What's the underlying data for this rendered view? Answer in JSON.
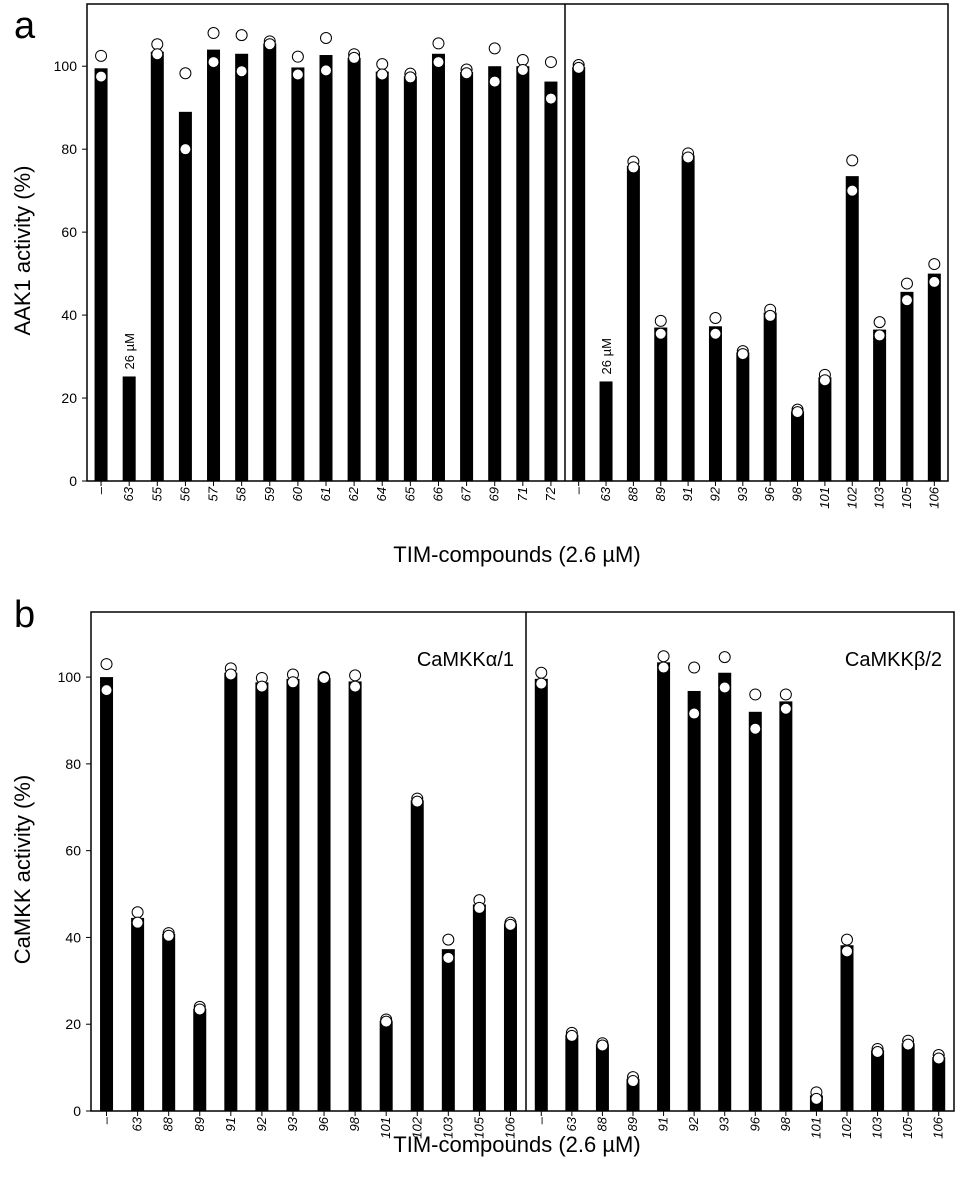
{
  "chart_data": [
    {
      "type": "bar",
      "panel_label": "a",
      "ylabel": "AAK1 activity (%)",
      "xlabel": "TIM-compounds (2.6 µM)",
      "ylim": [
        0,
        115
      ],
      "yticks": [
        0,
        20,
        40,
        60,
        80,
        100
      ],
      "grid": false,
      "legend": "none",
      "subplots": [
        {
          "title": "",
          "categories": [
            "–",
            "63",
            "55",
            "56",
            "57",
            "58",
            "59",
            "60",
            "61",
            "62",
            "64",
            "65",
            "66",
            "67",
            "69",
            "71",
            "72"
          ],
          "values": [
            99.5,
            25.2,
            103.5,
            89,
            104,
            103,
            105.5,
            99.7,
            102.7,
            102,
            98.7,
            97.6,
            103,
            98.6,
            100,
            100,
            96.3
          ],
          "replicates": [
            [
              102.5,
              97.5
            ],
            [
              null,
              null
            ],
            [
              105.3,
              102.9
            ],
            [
              98.3,
              80
            ],
            [
              108,
              101
            ],
            [
              107.5,
              98.8
            ],
            [
              106,
              105.3
            ],
            [
              102.3,
              98
            ],
            [
              106.8,
              99
            ],
            [
              102.9,
              102
            ],
            [
              100.5,
              98
            ],
            [
              98.2,
              97.3
            ],
            [
              105.5,
              101
            ],
            [
              99.2,
              98.3
            ],
            [
              104.3,
              96.3
            ],
            [
              101.5,
              99.1
            ],
            [
              101,
              92.2
            ]
          ],
          "annotations": [
            {
              "category": "63",
              "text": "26 µM"
            }
          ]
        },
        {
          "title": "",
          "categories": [
            "–",
            "63",
            "88",
            "89",
            "91",
            "92",
            "93",
            "96",
            "98",
            "101",
            "102",
            "103",
            "105",
            "106"
          ],
          "values": [
            99.8,
            24,
            76,
            37,
            78.5,
            37.3,
            31,
            40.6,
            16.8,
            25,
            73.5,
            36.5,
            45.6,
            50
          ],
          "replicates": [
            [
              100.3,
              99.6
            ],
            [
              null,
              null
            ],
            [
              77,
              75.6
            ],
            [
              38.6,
              35.5
            ],
            [
              79,
              78
            ],
            [
              39.3,
              35.5
            ],
            [
              31.3,
              30.6
            ],
            [
              41.3,
              39.8
            ],
            [
              17.2,
              16.6
            ],
            [
              25.6,
              24.3
            ],
            [
              77.3,
              70
            ],
            [
              38.3,
              35.1
            ],
            [
              47.6,
              43.6
            ],
            [
              52.3,
              48
            ]
          ],
          "annotations": [
            {
              "category": "63",
              "text": "26 µM"
            }
          ]
        }
      ]
    },
    {
      "type": "bar",
      "panel_label": "b",
      "ylabel": "CaMKK activity (%)",
      "xlabel": "TIM-compounds (2.6 µM)",
      "ylim": [
        0,
        115
      ],
      "yticks": [
        0,
        20,
        40,
        60,
        80,
        100
      ],
      "grid": false,
      "legend": "none",
      "subplots": [
        {
          "title": "CaMKKα/1",
          "categories": [
            "–",
            "63",
            "88",
            "89",
            "91",
            "92",
            "93",
            "96",
            "98",
            "101",
            "102",
            "103",
            "105",
            "106"
          ],
          "values": [
            100,
            44.5,
            40.8,
            23.6,
            101,
            98.8,
            99.6,
            99.8,
            99,
            20.8,
            71.6,
            37.3,
            47.6,
            43.2
          ],
          "replicates": [
            [
              103,
              97
            ],
            [
              45.8,
              43.4
            ],
            [
              41,
              40.4
            ],
            [
              24,
              23.4
            ],
            [
              102,
              100.6
            ],
            [
              99.8,
              97.8
            ],
            [
              100.6,
              98.8
            ],
            [
              100,
              99.8
            ],
            [
              100.4,
              97.8
            ],
            [
              21.1,
              20.6
            ],
            [
              72,
              71.3
            ],
            [
              39.5,
              35.3
            ],
            [
              48.6,
              46.8
            ],
            [
              43.4,
              42.9
            ]
          ],
          "annotations": []
        },
        {
          "title": "CaMKKβ/2",
          "categories": [
            "–",
            "63",
            "88",
            "89",
            "91",
            "92",
            "93",
            "96",
            "98",
            "101",
            "102",
            "103",
            "105",
            "106"
          ],
          "values": [
            99.6,
            17.6,
            15.4,
            7.4,
            103.4,
            96.8,
            101,
            92,
            94.4,
            3.6,
            38.2,
            14,
            15.6,
            12.4
          ],
          "replicates": [
            [
              101,
              98.5
            ],
            [
              18,
              17.3
            ],
            [
              15.6,
              15.1
            ],
            [
              7.8,
              6.9
            ],
            [
              104.8,
              102.2
            ],
            [
              102.2,
              91.6
            ],
            [
              104.6,
              97.6
            ],
            [
              96,
              88.1
            ],
            [
              96,
              92.7
            ],
            [
              4.3,
              2.8
            ],
            [
              39.5,
              36.8
            ],
            [
              14.3,
              13.6
            ],
            [
              16.2,
              15.3
            ],
            [
              12.9,
              12.1
            ]
          ],
          "annotations": []
        }
      ]
    }
  ]
}
